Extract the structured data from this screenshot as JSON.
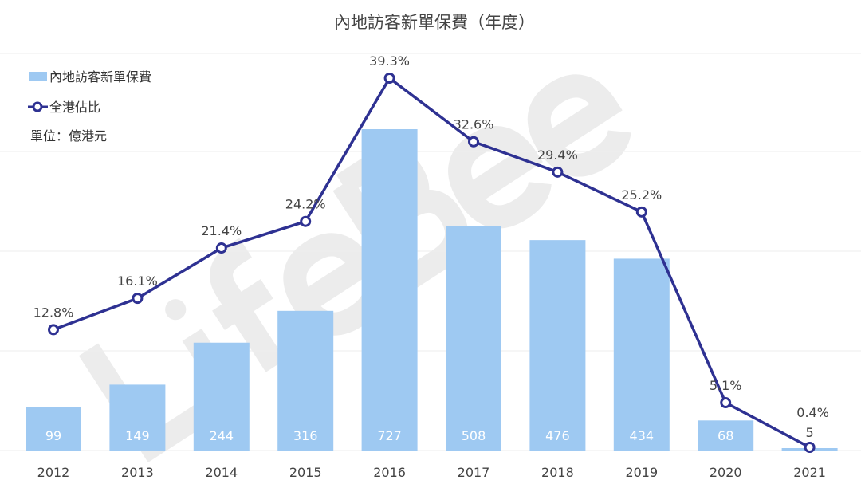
{
  "chart_data": {
    "type": "bar+line",
    "title": "內地訪客新單保費（年度）",
    "unit_label": "單位：億港元",
    "watermark": "LifeBee",
    "categories": [
      "2012",
      "2013",
      "2014",
      "2015",
      "2016",
      "2017",
      "2018",
      "2019",
      "2020",
      "2021"
    ],
    "series": [
      {
        "name": "內地訪客新單保費",
        "type": "bar",
        "color": "#9ec9f2",
        "values": [
          99,
          149,
          244,
          316,
          727,
          508,
          476,
          434,
          68,
          5
        ]
      },
      {
        "name": "全港佔比",
        "type": "line",
        "color": "#2e3192",
        "values": [
          12.8,
          16.1,
          21.4,
          24.2,
          39.3,
          32.6,
          29.4,
          25.2,
          5.1,
          0.4
        ]
      }
    ],
    "legend_placement": "top-left",
    "grid": true
  }
}
